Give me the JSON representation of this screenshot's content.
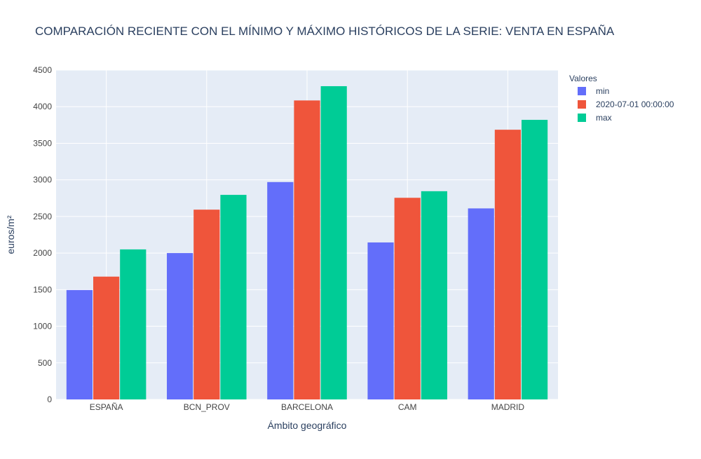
{
  "chart_data": {
    "type": "bar",
    "title": "COMPARACIÓN RECIENTE CON EL MÍNIMO Y MÁXIMO HISTÓRICOS DE LA SERIE: VENTA EN ESPAÑA",
    "xlabel": "Ámbito geográfico",
    "ylabel": "euros/m²",
    "ylim": [
      0,
      4500
    ],
    "yticks": [
      0,
      500,
      1000,
      1500,
      2000,
      2500,
      3000,
      3500,
      4000,
      4500
    ],
    "grid": true,
    "legend_title": "Valores",
    "legend_position": "top-right",
    "categories": [
      "ESPAÑA",
      "BCN_PROV",
      "BARCELONA",
      "CAM",
      "MADRID"
    ],
    "series": [
      {
        "name": "min",
        "color": "#636efa",
        "values": [
          1495,
          2000,
          2970,
          2145,
          2610
        ]
      },
      {
        "name": "2020-07-01 00:00:00",
        "color": "#ef553b",
        "values": [
          1678,
          2593,
          4085,
          2755,
          3685
        ]
      },
      {
        "name": "max",
        "color": "#00cc96",
        "values": [
          2050,
          2795,
          4280,
          2845,
          3820
        ]
      }
    ]
  },
  "colors": {
    "plot_background": "#e5ecf6",
    "grid": "#ffffff",
    "text": "#2a3f5f",
    "tick_text": "#444444"
  }
}
